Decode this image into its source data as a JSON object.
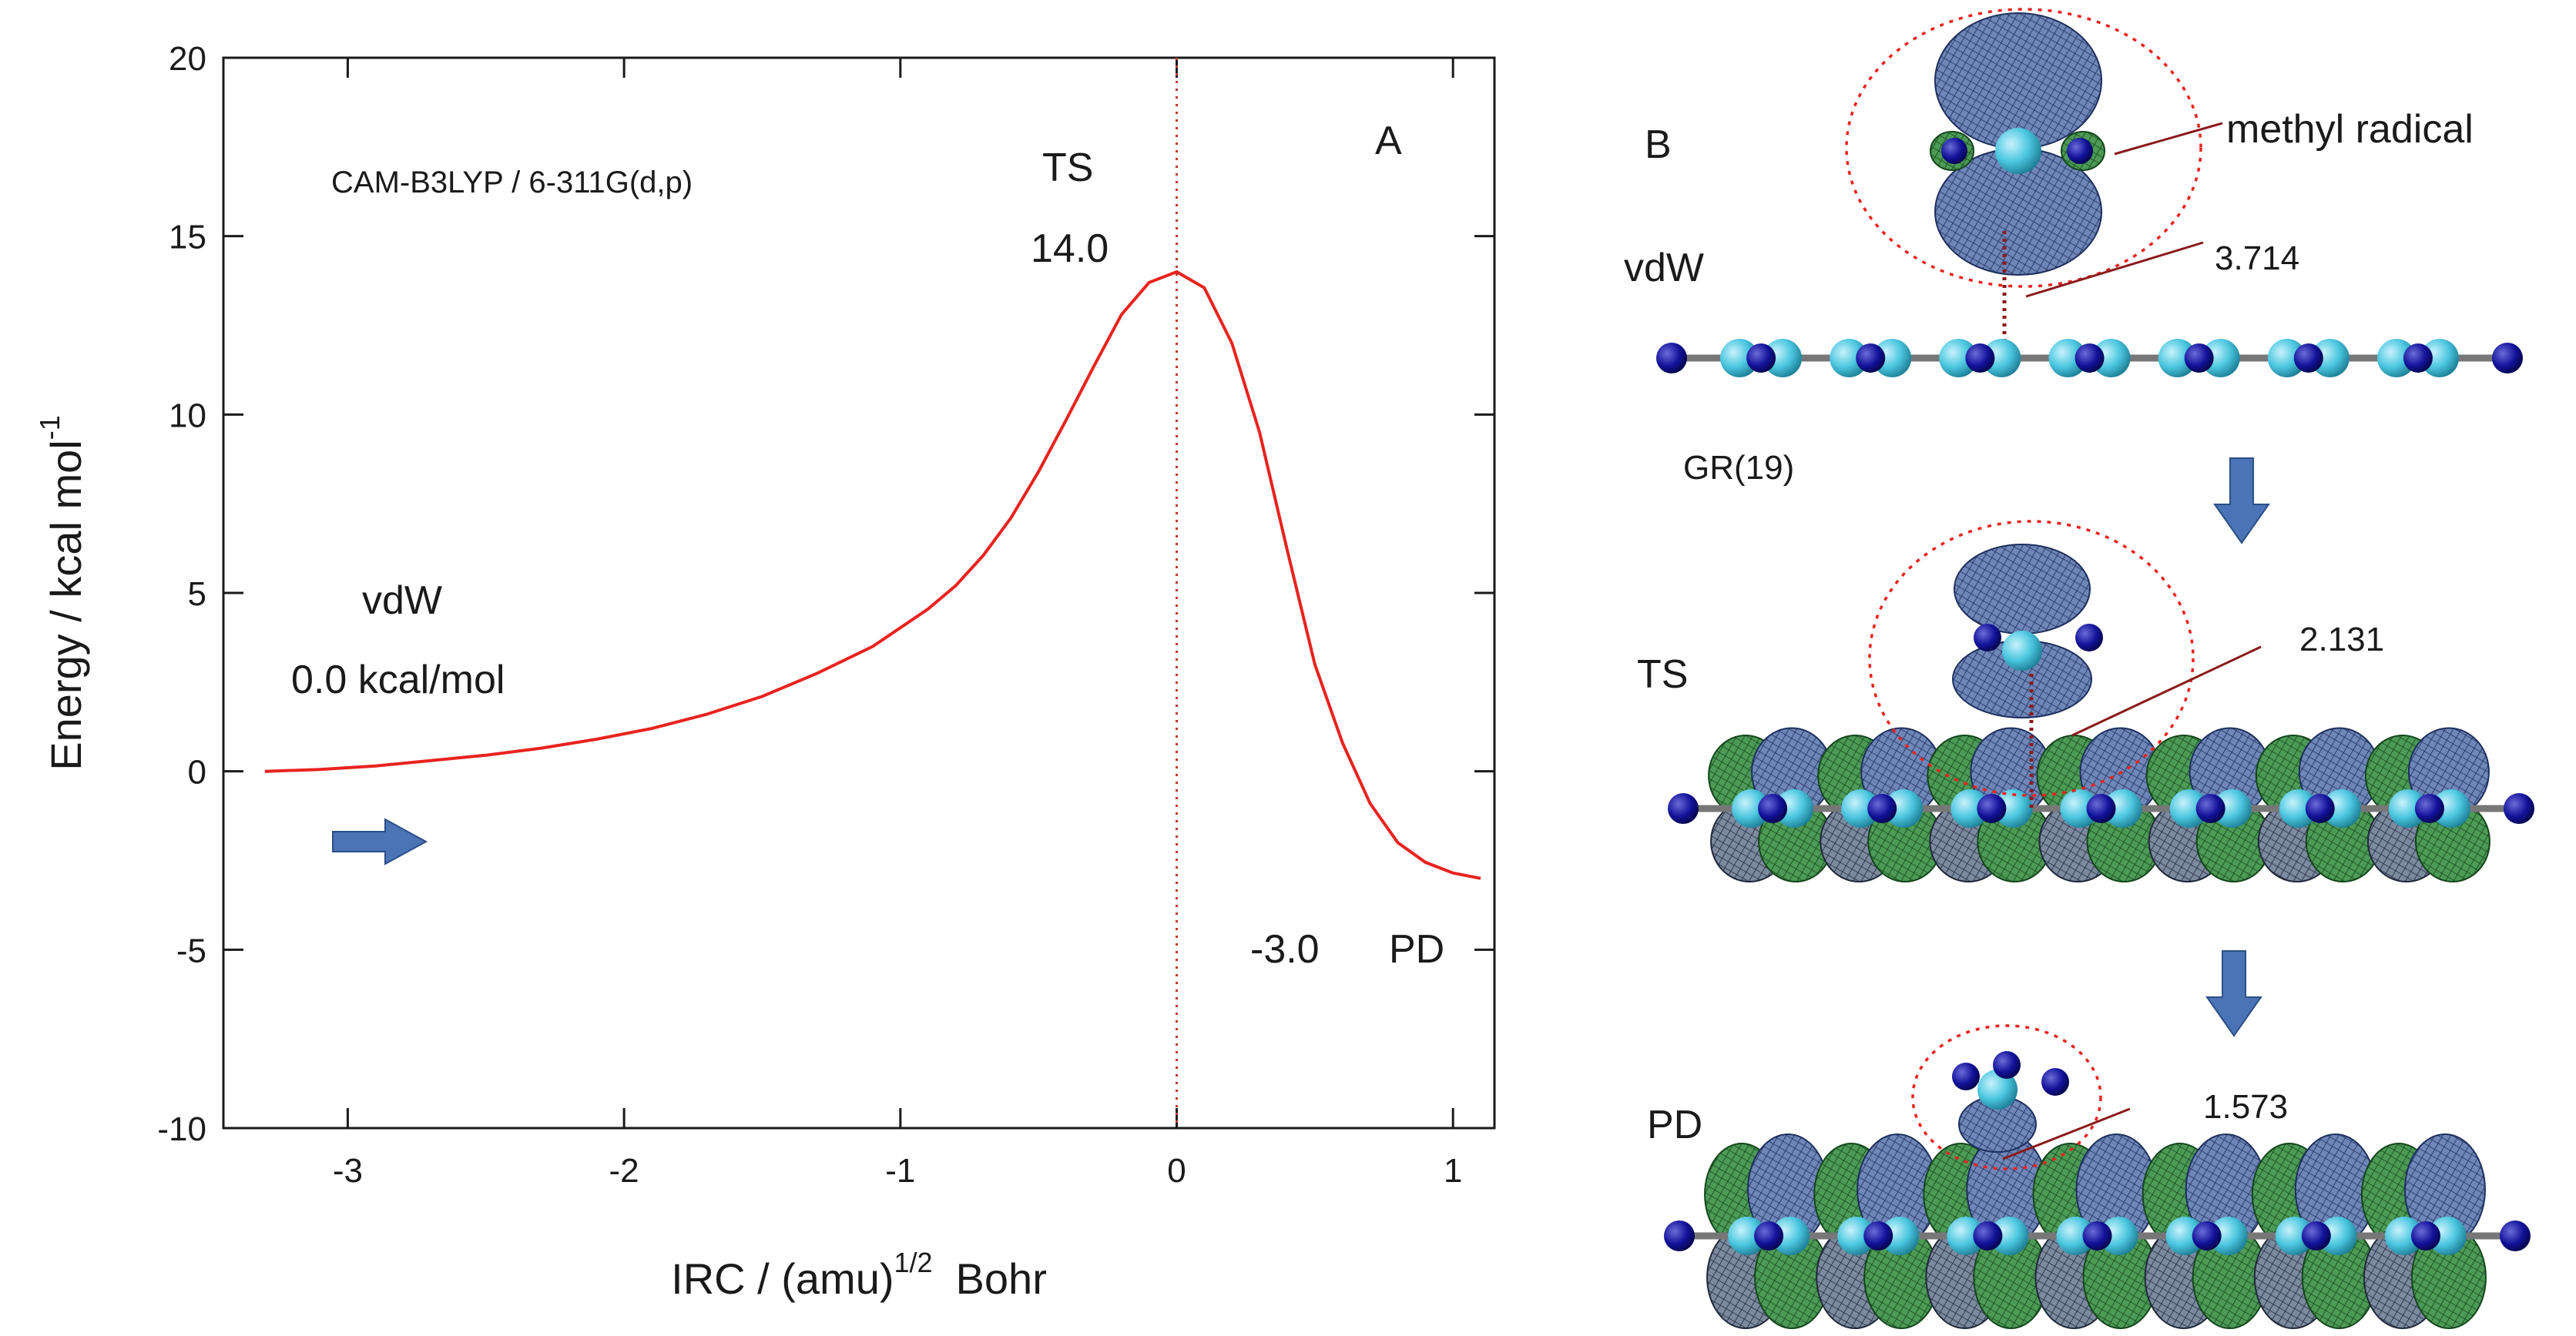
{
  "chart_data": {
    "type": "line",
    "title": "",
    "panel_label": "A",
    "method_label": "CAM-B3LYP / 6-311G(d,p)",
    "xlabel": {
      "main": "IRC / (amu)",
      "sup": "1/2",
      "unit": "Bohr"
    },
    "ylabel": {
      "main": "Energy / kcal mol",
      "sup": "-1"
    },
    "xlim": [
      -3.45,
      1.15
    ],
    "ylim": [
      -10,
      20
    ],
    "xticks": [
      -3,
      -2,
      -1,
      0,
      1
    ],
    "yticks": [
      -10,
      -5,
      0,
      5,
      10,
      15,
      20
    ],
    "grid": false,
    "series": [
      {
        "name": "IRC energy profile",
        "color": "#e8231f",
        "x": [
          -3.3,
          -3.1,
          -2.9,
          -2.7,
          -2.5,
          -2.3,
          -2.1,
          -1.9,
          -1.7,
          -1.5,
          -1.3,
          -1.1,
          -0.9,
          -0.8,
          -0.7,
          -0.6,
          -0.5,
          -0.4,
          -0.3,
          -0.2,
          -0.1,
          0.0,
          0.1,
          0.2,
          0.3,
          0.4,
          0.5,
          0.6,
          0.7,
          0.8,
          0.9,
          1.0,
          1.1
        ],
        "y": [
          0.0,
          0.05,
          0.15,
          0.3,
          0.45,
          0.65,
          0.9,
          1.2,
          1.6,
          2.1,
          2.75,
          3.5,
          4.55,
          5.2,
          6.05,
          7.1,
          8.4,
          9.85,
          11.35,
          12.8,
          13.7,
          14.0,
          13.55,
          12.0,
          9.5,
          6.2,
          3.0,
          0.8,
          -0.9,
          -2.0,
          -2.55,
          -2.85,
          -3.0
        ]
      }
    ],
    "ts_line_x": 0,
    "annotations": {
      "ts": "TS",
      "ts_energy": "14.0",
      "vdw": "vdW",
      "vdw_energy": "0.0 kcal/mol",
      "pd_energy": "-3.0",
      "pd": "PD"
    }
  },
  "panel_b": {
    "label": "B",
    "molecule_label": "methyl radical",
    "substrate_label": "GR(19)",
    "structures": [
      {
        "state": "vdW",
        "distance": "3.714"
      },
      {
        "state": "TS",
        "distance": "2.131"
      },
      {
        "state": "PD",
        "distance": "1.573"
      }
    ]
  },
  "colors": {
    "curve": "#e8231f",
    "ts_dotted": "#c0392b",
    "arrow": "#4a74b6",
    "leader": "#8b1a1a",
    "atom_h": "#0d0d8c",
    "atom_c": "#4cc7e0",
    "orbital_blue": "#34559a",
    "orbital_green": "#2e8a3a",
    "bond": "#777777"
  }
}
